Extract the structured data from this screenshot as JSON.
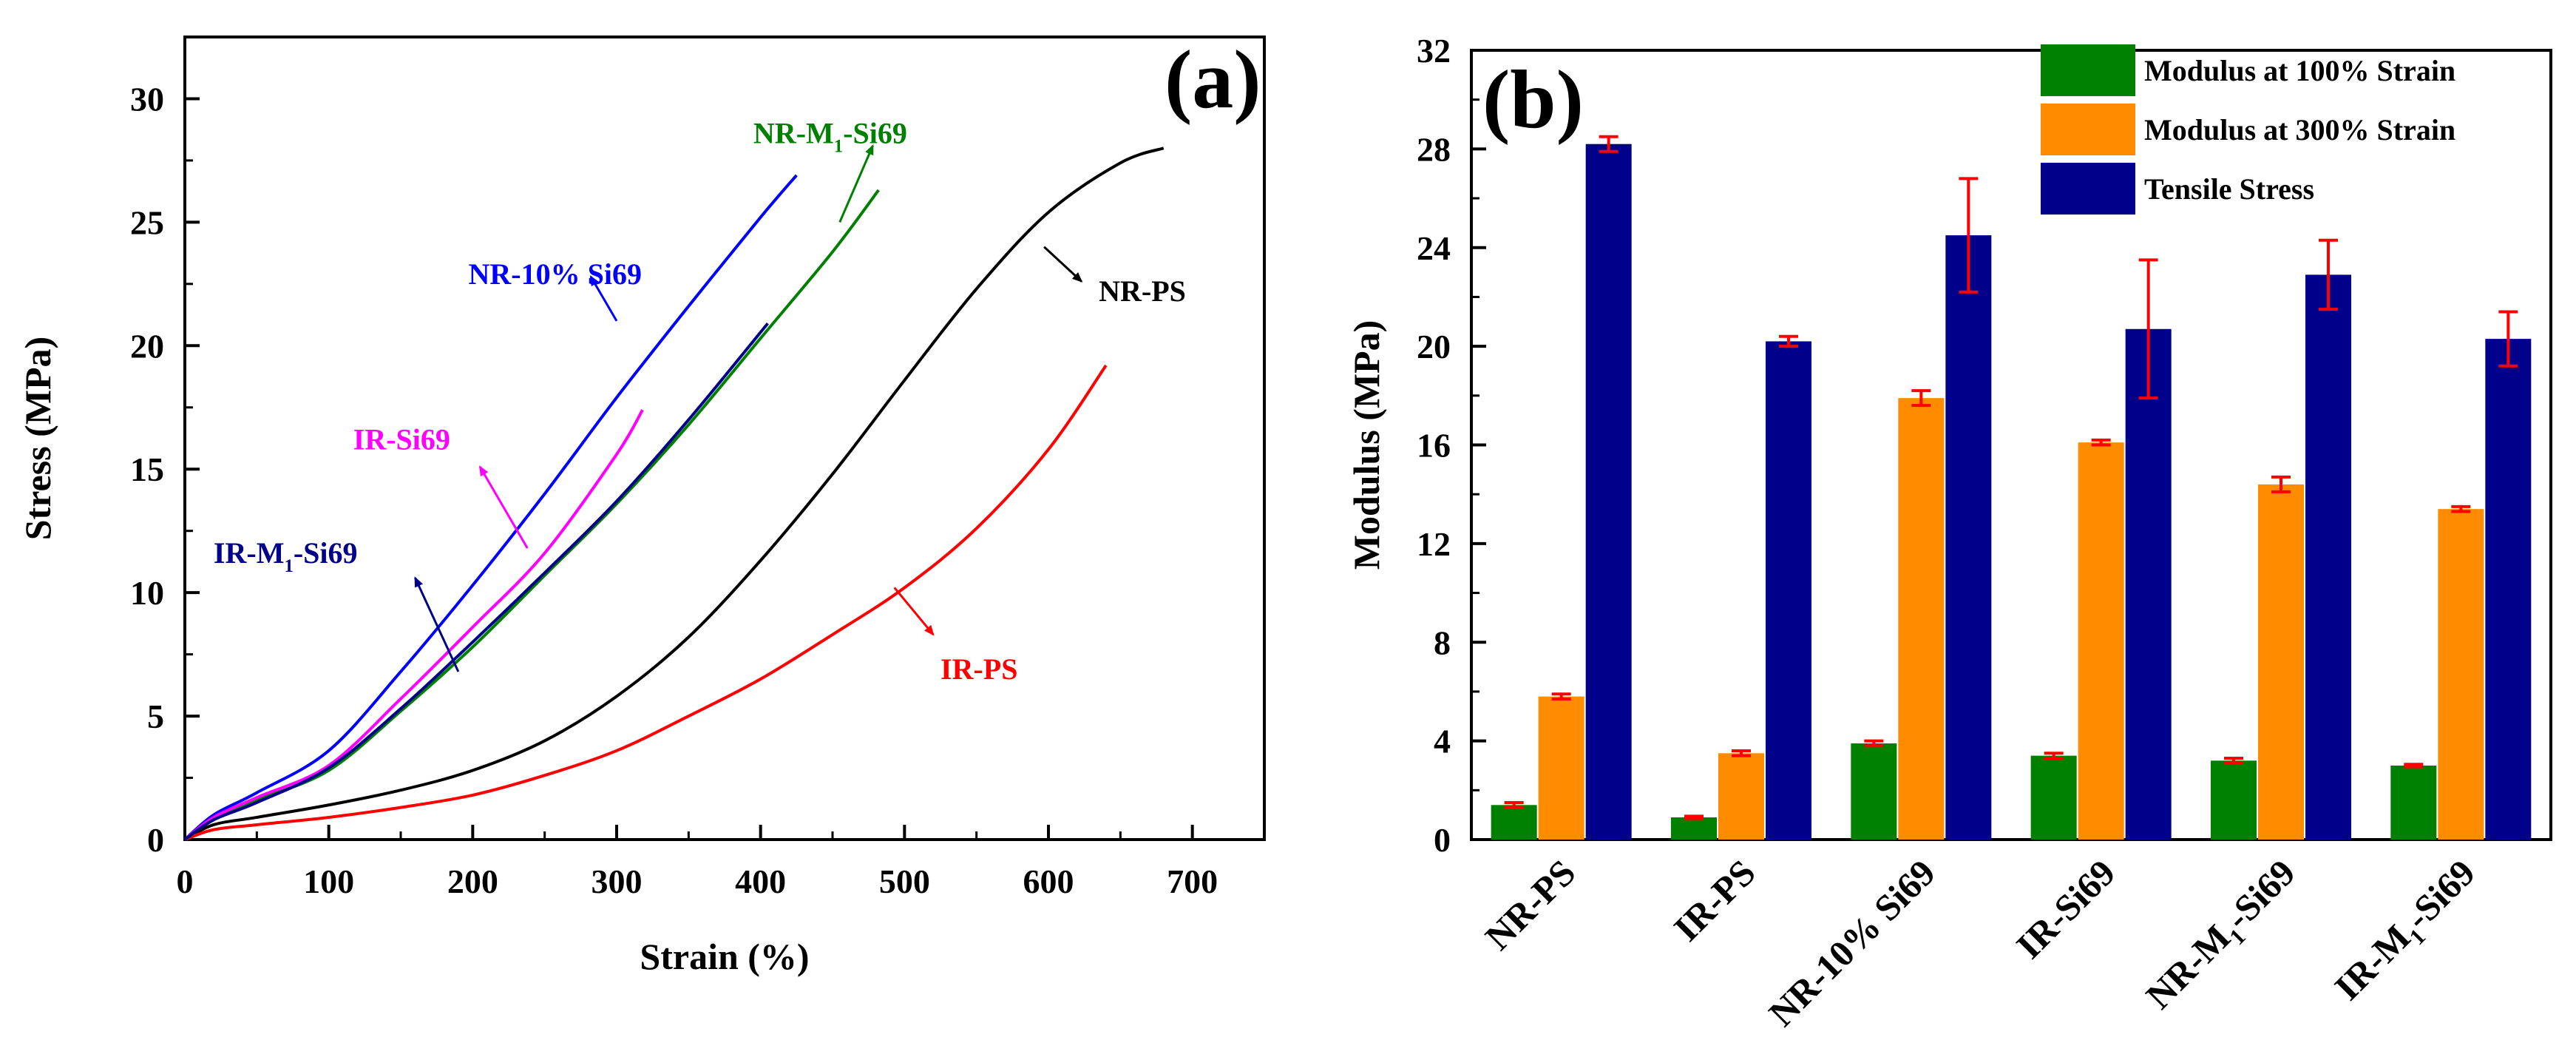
{
  "chart_data": [
    {
      "type": "line",
      "panel": "(a)",
      "xlabel": "Strain (%)",
      "ylabel": "Stress (MPa)",
      "xlim": [
        0,
        750
      ],
      "ylim": [
        0,
        32.5
      ],
      "xticks": [
        0,
        100,
        200,
        300,
        400,
        500,
        600,
        700
      ],
      "yticks": [
        0,
        5,
        10,
        15,
        20,
        25,
        30
      ],
      "series": [
        {
          "name": "NR-PS",
          "color": "#000000",
          "x": [
            0,
            20,
            50,
            100,
            150,
            200,
            250,
            300,
            350,
            400,
            450,
            500,
            550,
            600,
            650,
            680
          ],
          "y": [
            0,
            0.6,
            0.9,
            1.4,
            2.0,
            2.8,
            4.0,
            5.8,
            8.2,
            11.3,
            14.8,
            18.6,
            22.3,
            25.4,
            27.4,
            28.0
          ]
        },
        {
          "name": "IR-PS",
          "color": "#ff0000",
          "x": [
            0,
            20,
            50,
            100,
            150,
            200,
            250,
            300,
            350,
            400,
            450,
            500,
            550,
            600,
            640
          ],
          "y": [
            0,
            0.4,
            0.6,
            0.9,
            1.3,
            1.8,
            2.6,
            3.6,
            5.0,
            6.5,
            8.3,
            10.2,
            12.6,
            15.8,
            19.2
          ]
        },
        {
          "name": "NR-10% Si69",
          "color": "#0000ff",
          "x": [
            0,
            20,
            50,
            100,
            150,
            200,
            250,
            300,
            350,
            400,
            425
          ],
          "y": [
            0,
            1.0,
            1.9,
            3.6,
            6.8,
            10.3,
            14.0,
            17.9,
            21.6,
            25.2,
            26.9
          ]
        },
        {
          "name": "NR-M1-Si69",
          "color": "#008000",
          "x": [
            0,
            20,
            50,
            100,
            150,
            200,
            250,
            300,
            350,
            400,
            450,
            482
          ],
          "y": [
            0,
            0.8,
            1.6,
            2.8,
            5.2,
            7.8,
            10.7,
            13.6,
            16.8,
            20.3,
            23.8,
            26.3
          ]
        },
        {
          "name": "IR-Si69",
          "color": "#ff00ff",
          "x": [
            0,
            20,
            50,
            100,
            150,
            200,
            250,
            300,
            318
          ],
          "y": [
            0,
            0.9,
            1.7,
            3.0,
            5.7,
            8.6,
            11.6,
            15.6,
            17.4
          ]
        },
        {
          "name": "IR-M1-Si69",
          "color": "#00008b",
          "x": [
            0,
            20,
            50,
            100,
            150,
            200,
            250,
            300,
            350,
            405
          ],
          "y": [
            0,
            0.8,
            1.5,
            2.9,
            5.3,
            8.0,
            10.8,
            13.7,
            17.0,
            20.9
          ]
        }
      ],
      "annotations": [
        {
          "label": "NR-M",
          "sub": "1",
          "suffix": "-Si69",
          "color": "#008000"
        },
        {
          "label": "NR-10% Si69",
          "color": "#0000ff"
        },
        {
          "label": "NR-PS",
          "color": "#000000"
        },
        {
          "label": "IR-Si69",
          "color": "#ff00ff"
        },
        {
          "label": "IR-M",
          "sub": "1",
          "suffix": "-Si69",
          "color": "#00008b"
        },
        {
          "label": "IR-PS",
          "color": "#ff0000"
        }
      ]
    },
    {
      "type": "bar",
      "panel": "(b)",
      "xlabel": "",
      "ylabel": "Modulus (MPa)",
      "ylim": [
        0,
        32
      ],
      "yticks": [
        0,
        4,
        8,
        12,
        16,
        20,
        24,
        28,
        32
      ],
      "legend_position": "top-right",
      "categories": [
        {
          "label": "NR-PS"
        },
        {
          "label": "IR-PS"
        },
        {
          "label": "NR-10% Si69"
        },
        {
          "label": "IR-Si69"
        },
        {
          "label": "NR-M",
          "sub": "1",
          "suffix": "-Si69"
        },
        {
          "label": "IR-M",
          "sub": "1",
          "suffix": "-Si69"
        }
      ],
      "series": [
        {
          "name": "Modulus at 100% Strain",
          "color": "#008000",
          "values": [
            1.4,
            0.9,
            3.9,
            3.4,
            3.2,
            3.0
          ],
          "errors": [
            0.1,
            0.05,
            0.1,
            0.1,
            0.1,
            0.05
          ]
        },
        {
          "name": "Modulus at 300% Strain",
          "color": "#ff8c00",
          "values": [
            5.8,
            3.5,
            17.9,
            16.1,
            14.4,
            13.4
          ],
          "errors": [
            0.1,
            0.1,
            0.3,
            0.1,
            0.3,
            0.1
          ]
        },
        {
          "name": "Tensile Stress",
          "color": "#00008b",
          "values": [
            28.2,
            20.2,
            24.5,
            20.7,
            22.9,
            20.3
          ],
          "errors": [
            0.3,
            0.2,
            2.3,
            2.8,
            1.4,
            1.1
          ]
        }
      ]
    }
  ]
}
